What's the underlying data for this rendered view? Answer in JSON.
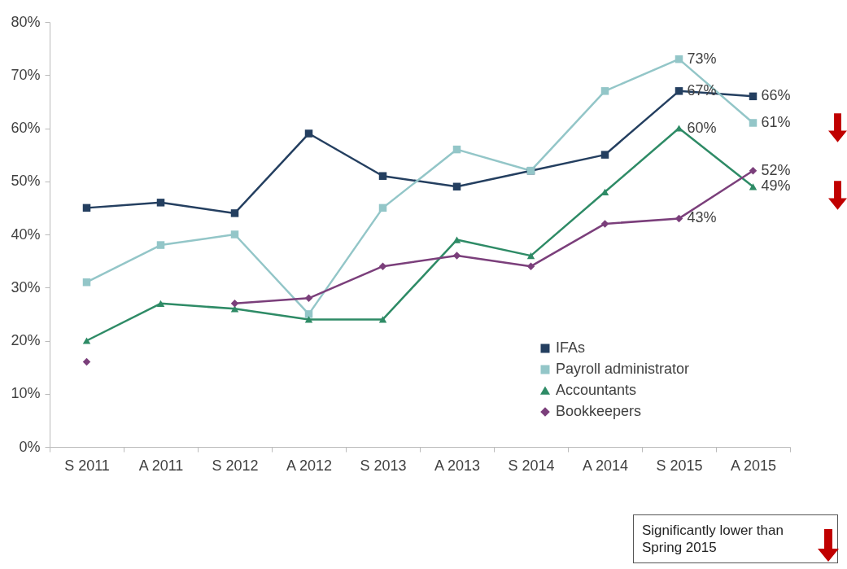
{
  "chart_data": {
    "type": "line",
    "categories": [
      "S 2011",
      "A 2011",
      "S 2012",
      "A 2012",
      "S 2013",
      "A 2013",
      "S 2014",
      "A 2014",
      "S 2015",
      "A 2015"
    ],
    "ylim": [
      0,
      80
    ],
    "yticks": [
      {
        "value": 0,
        "label": "0%"
      },
      {
        "value": 10,
        "label": "10%"
      },
      {
        "value": 20,
        "label": "20%"
      },
      {
        "value": 30,
        "label": "30%"
      },
      {
        "value": 40,
        "label": "40%"
      },
      {
        "value": 50,
        "label": "50%"
      },
      {
        "value": 60,
        "label": "60%"
      },
      {
        "value": 70,
        "label": "70%"
      },
      {
        "value": 80,
        "label": "80%"
      }
    ],
    "grid": false,
    "legend": "bottom right",
    "series": [
      {
        "name": "IFAs",
        "color": "#243f60",
        "marker": "square",
        "values": [
          45,
          46,
          44,
          59,
          51,
          49,
          52,
          55,
          67,
          66
        ],
        "value_labels": [
          null,
          null,
          null,
          null,
          null,
          null,
          null,
          null,
          "67%",
          "66%"
        ]
      },
      {
        "name": "Payroll administrator",
        "color": "#93c6c8",
        "marker": "square",
        "values": [
          31,
          38,
          40,
          25,
          45,
          56,
          52,
          67,
          73,
          61
        ],
        "value_labels": [
          null,
          null,
          null,
          null,
          null,
          null,
          null,
          null,
          "73%",
          "61%"
        ]
      },
      {
        "name": "Accountants",
        "color": "#2e8b66",
        "marker": "triangle",
        "values": [
          20,
          27,
          26,
          24,
          24,
          39,
          36,
          48,
          60,
          49
        ],
        "value_labels": [
          null,
          null,
          null,
          null,
          null,
          null,
          null,
          null,
          "60%",
          "49%"
        ]
      },
      {
        "name": "Bookkeepers",
        "color": "#7b3f7b",
        "marker": "diamond",
        "values": [
          16,
          null,
          27,
          28,
          34,
          36,
          34,
          42,
          43,
          52
        ],
        "value_labels": [
          null,
          null,
          null,
          null,
          null,
          null,
          null,
          null,
          "43%",
          "52%"
        ]
      }
    ],
    "annotations": [
      "Significantly lower than Spring 2015"
    ]
  }
}
